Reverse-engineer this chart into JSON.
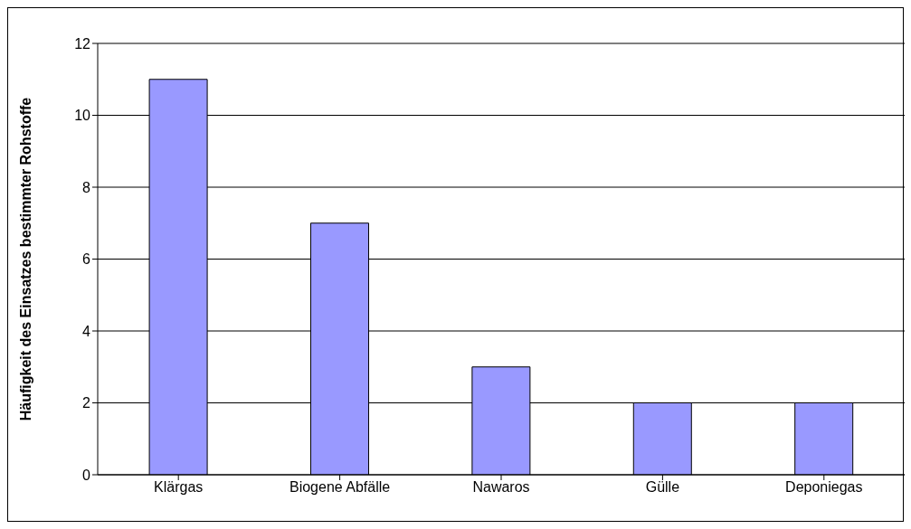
{
  "chart_data": {
    "type": "bar",
    "ylabel": "Häufigkeit des Einsatzes bestimmter Rohstoffe",
    "categories": [
      "Klärgas",
      "Biogene Abfälle",
      "Nawaros",
      "Gülle",
      "Deponiegas"
    ],
    "values": [
      11,
      7,
      3,
      2,
      2
    ],
    "color": "#9999ff",
    "ylim": [
      0,
      12
    ],
    "yticks": [
      0,
      2,
      4,
      6,
      8,
      10,
      12
    ],
    "grid": "y"
  }
}
